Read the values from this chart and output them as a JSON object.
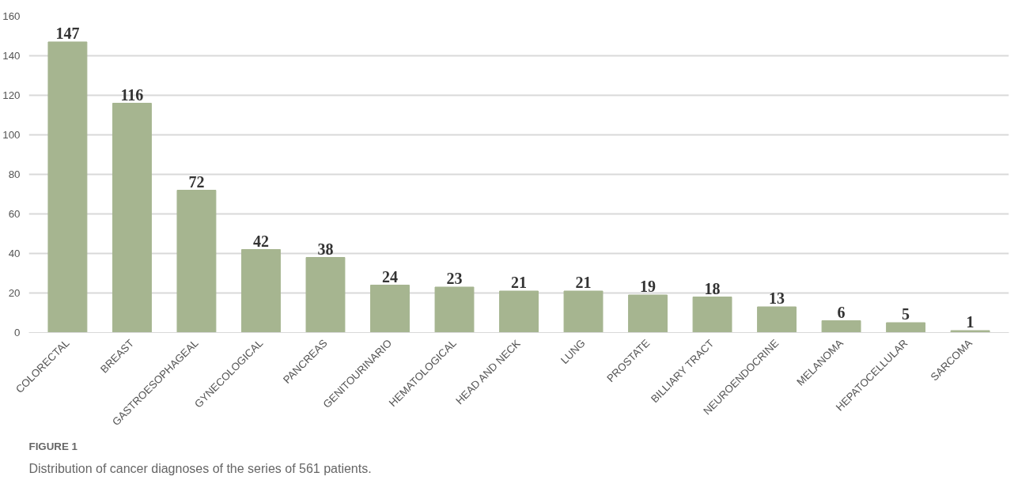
{
  "chart_data": {
    "type": "bar",
    "categories": [
      "COLORECTAL",
      "BREAST",
      "GASTROESOPHAGEAL",
      "GYNECOLOGICAL",
      "PANCREAS",
      "GENITOURINARIO",
      "HEMATOLOGICAL",
      "HEAD AND NECK",
      "LUNG",
      "PROSTATE",
      "BILLIARY TRACT",
      "NEUROENDOCRINE",
      "MELANOMA",
      "HEPATOCELLULAR",
      "SARCOMA"
    ],
    "values": [
      147,
      116,
      72,
      42,
      38,
      24,
      23,
      21,
      21,
      19,
      18,
      13,
      6,
      5,
      1
    ],
    "color": "#a6b590",
    "ylim": [
      0,
      160
    ],
    "yticks": [
      0,
      20,
      40,
      60,
      80,
      100,
      120,
      140,
      160
    ],
    "grid": "y",
    "data_labels": true,
    "annotations": [
      "FIGURE 1",
      "Distribution of cancer diagnoses of the series of 561 patients."
    ]
  }
}
